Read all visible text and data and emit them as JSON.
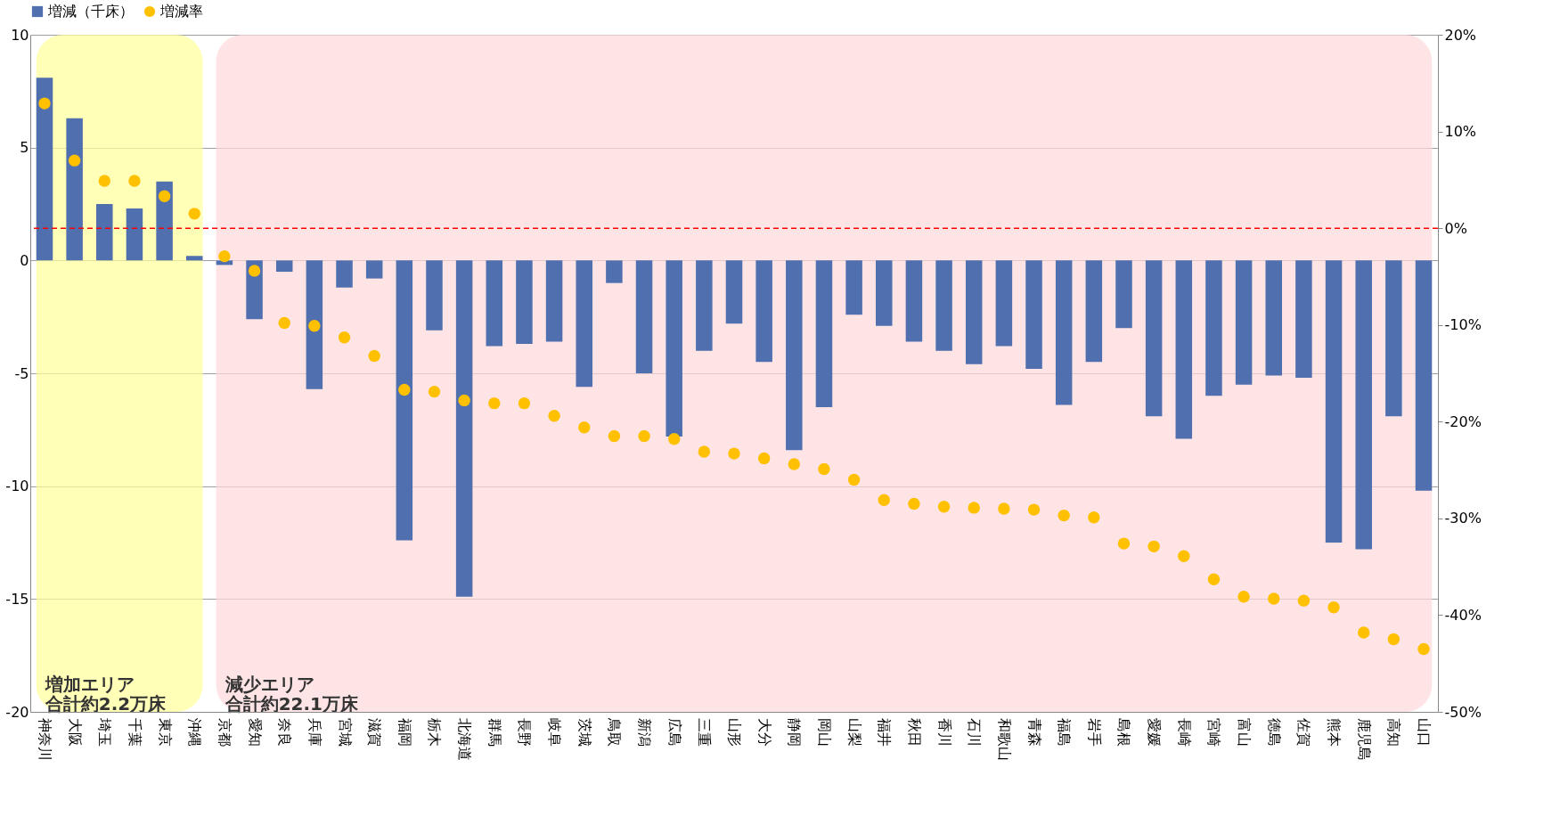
{
  "chart_data": {
    "type": "bar",
    "categories": [
      "神奈川",
      "大阪",
      "埼玉",
      "千葉",
      "東京",
      "沖縄",
      "京都",
      "愛知",
      "奈良",
      "兵庫",
      "宮城",
      "滋賀",
      "福岡",
      "栃木",
      "北海道",
      "群馬",
      "長野",
      "岐阜",
      "茨城",
      "鳥取",
      "新潟",
      "広島",
      "三重",
      "山形",
      "大分",
      "静岡",
      "岡山",
      "山梨",
      "福井",
      "秋田",
      "香川",
      "石川",
      "和歌山",
      "青森",
      "福島",
      "岩手",
      "島根",
      "愛媛",
      "長崎",
      "宮崎",
      "富山",
      "徳島",
      "佐賀",
      "熊本",
      "鹿児島",
      "高知",
      "山口"
    ],
    "series": [
      {
        "name": "増減（千床）",
        "color": "#4f6fae",
        "values": [
          8.1,
          6.3,
          2.5,
          2.3,
          3.5,
          0.2,
          -0.2,
          -2.6,
          -0.5,
          -5.7,
          -1.2,
          -0.8,
          -12.4,
          -3.1,
          -14.9,
          -3.8,
          -3.7,
          -3.6,
          -5.6,
          -1.0,
          -5.0,
          -7.8,
          -4.0,
          -2.8,
          -4.5,
          -8.4,
          -6.5,
          -2.4,
          -2.9,
          -3.6,
          -4.0,
          -4.6,
          -3.8,
          -4.8,
          -6.4,
          -4.5,
          -3.0,
          -6.9,
          -7.9,
          -6.0,
          -5.5,
          -5.1,
          -5.2,
          -12.5,
          -12.8,
          -6.9,
          -10.2
        ]
      },
      {
        "name": "増減率",
        "type": "scatter",
        "axis": "y2",
        "color": "#ffc000",
        "values": [
          12.9,
          7.0,
          4.9,
          4.9,
          3.3,
          1.5,
          -2.9,
          -4.4,
          -9.8,
          -10.1,
          -11.3,
          -13.2,
          -16.7,
          -16.9,
          -17.8,
          -18.1,
          -18.1,
          -19.4,
          -20.6,
          -21.5,
          -21.5,
          -21.8,
          -23.1,
          -23.3,
          -23.8,
          -24.4,
          -24.9,
          -26.0,
          -28.1,
          -28.5,
          -28.8,
          -28.9,
          -29.0,
          -29.1,
          -29.7,
          -29.9,
          -32.6,
          -32.9,
          -33.9,
          -36.3,
          -38.1,
          -38.3,
          -38.5,
          -39.2,
          -41.8,
          -42.5,
          -43.5
        ]
      }
    ],
    "ylim": [
      -20,
      10
    ],
    "yticks": [
      -20,
      -15,
      -10,
      -5,
      0,
      5,
      10
    ],
    "y2lim": [
      -50,
      20
    ],
    "y2ticks": [
      {
        "value": -50,
        "label": "-50%"
      },
      {
        "value": -40,
        "label": "-40%"
      },
      {
        "value": -30,
        "label": "-30%"
      },
      {
        "value": -20,
        "label": "-20%"
      },
      {
        "value": -10,
        "label": "-10%"
      },
      {
        "value": 0,
        "label": "0%"
      },
      {
        "value": 10,
        "label": "10%"
      },
      {
        "value": 20,
        "label": "20%"
      }
    ],
    "ref_lines": [
      {
        "axis": "y2",
        "value": 0,
        "color": "#ff0000",
        "line_style": "dashed"
      }
    ],
    "bands": [
      {
        "axis": "x",
        "from": "神奈川",
        "to": "沖縄",
        "label": [
          "増加エリア",
          "合計約2.2万床"
        ],
        "color": "#ffff99"
      },
      {
        "axis": "x",
        "from": "京都",
        "to": "山口",
        "label": [
          "減少エリア",
          "合計約22.1万床"
        ],
        "color": "#ffd9dc"
      }
    ],
    "grid": "y",
    "legend": "top",
    "marker": "circle"
  }
}
